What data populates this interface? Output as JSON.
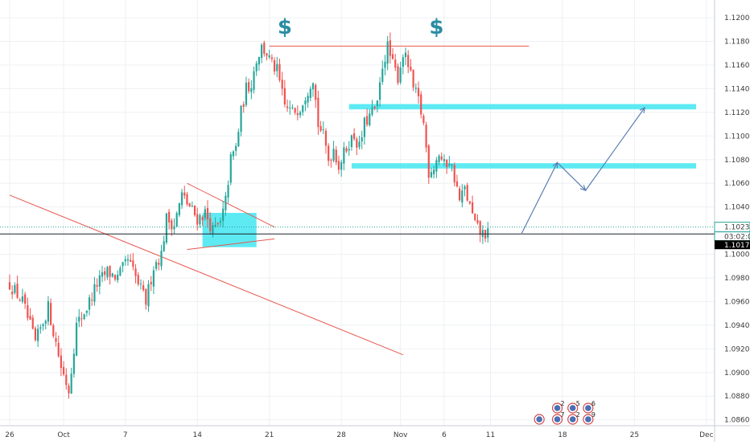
{
  "colors": {
    "bull": "#26a69a",
    "bear": "#ef5350",
    "zone": "#4de8f2",
    "arrow": "#5c7fb3",
    "trend": "#e8584f",
    "dollar": "#2a8da3",
    "grid": "#eef0f3",
    "axis_text": "#3a3a3a"
  },
  "chart_data": {
    "type": "candlestick",
    "y_axis": {
      "ylim": [
        1.0855,
        1.1215
      ],
      "ticks": [
        "1.12000",
        "1.11800",
        "1.11600",
        "1.11400",
        "1.11200",
        "1.11000",
        "1.10800",
        "1.10600",
        "1.10400",
        "1.10000",
        "1.09800",
        "1.09600",
        "1.09400",
        "1.09200",
        "1.09000",
        "1.08800",
        "1.08600"
      ]
    },
    "x_axis": {
      "ticks": [
        {
          "label": "26",
          "bar": 0
        },
        {
          "label": "Oct",
          "bar": 21
        },
        {
          "label": "7",
          "bar": 45
        },
        {
          "label": "14",
          "bar": 73
        },
        {
          "label": "21",
          "bar": 101
        },
        {
          "label": "28",
          "bar": 129
        },
        {
          "label": "Nov",
          "bar": 152
        },
        {
          "label": "6",
          "bar": 169
        },
        {
          "label": "11",
          "bar": 187
        },
        {
          "label": "18",
          "bar": 215
        },
        {
          "label": "25",
          "bar": 243
        },
        {
          "label": "Dec",
          "bar": 271
        }
      ]
    },
    "close_path": [
      [
        0,
        1.0975
      ],
      [
        5,
        1.096
      ],
      [
        10,
        1.0925
      ],
      [
        15,
        1.0955
      ],
      [
        20,
        1.0905
      ],
      [
        23,
        1.0885
      ],
      [
        26,
        1.094
      ],
      [
        30,
        1.0955
      ],
      [
        34,
        1.0975
      ],
      [
        38,
        1.0985
      ],
      [
        42,
        1.098
      ],
      [
        46,
        1.0995
      ],
      [
        50,
        1.0975
      ],
      [
        53,
        1.096
      ],
      [
        56,
        1.099
      ],
      [
        59,
        1.1
      ],
      [
        61,
        1.103
      ],
      [
        64,
        1.1025
      ],
      [
        67,
        1.105
      ],
      [
        70,
        1.104
      ],
      [
        73,
        1.103
      ],
      [
        76,
        1.1035
      ],
      [
        79,
        1.102
      ],
      [
        82,
        1.1025
      ],
      [
        84,
        1.1045
      ],
      [
        86,
        1.108
      ],
      [
        88,
        1.109
      ],
      [
        90,
        1.112
      ],
      [
        92,
        1.114
      ],
      [
        94,
        1.1145
      ],
      [
        96,
        1.1165
      ],
      [
        98,
        1.1175
      ],
      [
        100,
        1.117
      ],
      [
        102,
        1.116
      ],
      [
        104,
        1.1155
      ],
      [
        107,
        1.1125
      ],
      [
        110,
        1.112
      ],
      [
        113,
        1.1125
      ],
      [
        116,
        1.114
      ],
      [
        118,
        1.115
      ],
      [
        120,
        1.111
      ],
      [
        122,
        1.11
      ],
      [
        124,
        1.108
      ],
      [
        126,
        1.109
      ],
      [
        128,
        1.1075
      ],
      [
        130,
        1.1085
      ],
      [
        132,
        1.1095
      ],
      [
        134,
        1.11
      ],
      [
        136,
        1.109
      ],
      [
        138,
        1.111
      ],
      [
        141,
        1.112
      ],
      [
        143,
        1.1125
      ],
      [
        145,
        1.116
      ],
      [
        147,
        1.1175
      ],
      [
        149,
        1.116
      ],
      [
        151,
        1.115
      ],
      [
        153,
        1.117
      ],
      [
        155,
        1.116
      ],
      [
        157,
        1.114
      ],
      [
        159,
        1.113
      ],
      [
        161,
        1.111
      ],
      [
        163,
        1.107
      ],
      [
        165,
        1.1075
      ],
      [
        167,
        1.1085
      ],
      [
        169,
        1.1075
      ],
      [
        171,
        1.108
      ],
      [
        173,
        1.1065
      ],
      [
        175,
        1.1045
      ],
      [
        177,
        1.1055
      ],
      [
        179,
        1.104
      ],
      [
        181,
        1.1025
      ],
      [
        183,
        1.1018
      ],
      [
        186,
        1.1017
      ]
    ],
    "current_price": {
      "value": 1.10172,
      "label": "1.10172"
    },
    "price_tag": {
      "value": 1.1023,
      "label": "1.10230",
      "countdown": "03:02:07"
    },
    "annotations": {
      "trendlines": [
        {
          "from": [
            0,
            1.105
          ],
          "to": [
            153,
            1.0915
          ]
        },
        {
          "from": [
            69,
            1.106
          ],
          "to": [
            103,
            1.1023
          ]
        },
        {
          "from": [
            69,
            1.1004
          ],
          "to": [
            103,
            1.1013
          ]
        },
        {
          "from": [
            101,
            1.1176
          ],
          "to": [
            202,
            1.1176
          ]
        }
      ],
      "zones": [
        {
          "from_bar": 75,
          "to_bar": 96,
          "low": 1.1006,
          "high": 1.1035
        },
        {
          "from_bar": 132,
          "to_bar": 267,
          "low": 1.11225,
          "high": 1.1127
        },
        {
          "from_bar": 133,
          "to_bar": 267,
          "low": 1.10725,
          "high": 1.1077
        }
      ],
      "arrow_path": [
        [
          199,
          1.1017
        ],
        [
          213,
          1.10775
        ],
        [
          224,
          1.1054
        ],
        [
          247,
          1.1124
        ]
      ],
      "dollar_marks": [
        {
          "label": "$",
          "bar": 107,
          "price": 1.12
        },
        {
          "label": "$",
          "bar": 166,
          "price": 1.12
        }
      ]
    },
    "events": {
      "row1": [
        {
          "label": "2",
          "bar": 213
        },
        {
          "label": "5",
          "bar": 219
        },
        {
          "label": "6",
          "bar": 225
        }
      ],
      "row2": [
        {
          "label": "",
          "bar": 206
        },
        {
          "label": "7",
          "bar": 213
        },
        {
          "label": "2",
          "bar": 219
        },
        {
          "label": "9",
          "bar": 225
        }
      ]
    }
  }
}
